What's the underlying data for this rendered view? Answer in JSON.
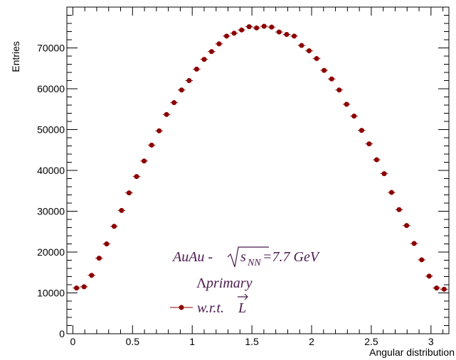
{
  "chart_data": {
    "type": "scatter",
    "xlabel": "Angular distribution",
    "ylabel": "Entries",
    "xlim": [
      -0.05,
      3.15
    ],
    "ylim": [
      0,
      80000
    ],
    "grid": false,
    "marker_color": "#8b0000",
    "annotation_color": "#4a1a4f",
    "x_ticks": [
      {
        "value": 0,
        "label": "0"
      },
      {
        "value": 0.5,
        "label": "0.5"
      },
      {
        "value": 1,
        "label": "1"
      },
      {
        "value": 1.5,
        "label": "1.5"
      },
      {
        "value": 2,
        "label": "2"
      },
      {
        "value": 2.5,
        "label": "2.5"
      },
      {
        "value": 3,
        "label": "3"
      }
    ],
    "y_ticks": [
      {
        "value": 0,
        "label": "0"
      },
      {
        "value": 10000,
        "label": "10000"
      },
      {
        "value": 20000,
        "label": "20000"
      },
      {
        "value": 30000,
        "label": "30000"
      },
      {
        "value": 40000,
        "label": "40000"
      },
      {
        "value": 50000,
        "label": "50000"
      },
      {
        "value": 60000,
        "label": "60000"
      },
      {
        "value": 70000,
        "label": "70000"
      }
    ],
    "annotations": {
      "line1_prefix": "AuAu - ",
      "line1_sqrt": "s",
      "line1_sub": "NN",
      "line1_suffix": "=7.7 GeV",
      "line2_symbol": "Λ",
      "line2_text": " primary"
    },
    "legend": {
      "label": "w.r.t. ",
      "vector": "L"
    },
    "series": [
      {
        "x": [
          0.031,
          0.094,
          0.157,
          0.22,
          0.283,
          0.346,
          0.408,
          0.471,
          0.534,
          0.597,
          0.66,
          0.723,
          0.785,
          0.848,
          0.911,
          0.974,
          1.037,
          1.1,
          1.162,
          1.225,
          1.288,
          1.351,
          1.414,
          1.477,
          1.539,
          1.602,
          1.665,
          1.728,
          1.791,
          1.854,
          1.916,
          1.979,
          2.042,
          2.105,
          2.168,
          2.231,
          2.293,
          2.356,
          2.419,
          2.482,
          2.545,
          2.608,
          2.67,
          2.733,
          2.796,
          2.859,
          2.922,
          2.985,
          3.047,
          3.11
        ],
        "y": [
          11200,
          11500,
          14300,
          18500,
          22000,
          26300,
          30200,
          34500,
          38500,
          42300,
          46200,
          49700,
          53700,
          56600,
          59700,
          62000,
          64800,
          67200,
          69100,
          71000,
          72900,
          73600,
          74400,
          75200,
          74900,
          75300,
          75100,
          73900,
          73300,
          72900,
          70600,
          69300,
          67400,
          64500,
          62400,
          59700,
          56200,
          53300,
          49800,
          46500,
          42600,
          39200,
          34600,
          30400,
          26500,
          22100,
          18100,
          14100,
          11200,
          10900
        ]
      }
    ]
  }
}
